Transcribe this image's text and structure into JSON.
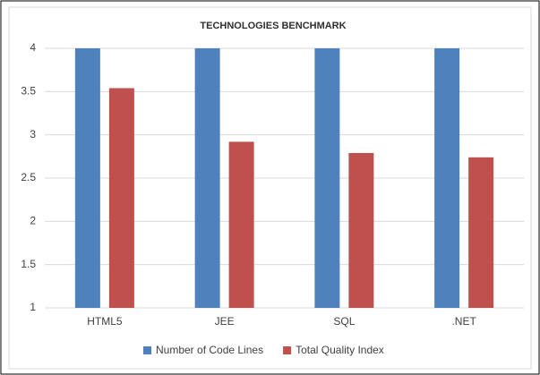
{
  "chart_data": {
    "type": "bar",
    "title": "TECHNOLOGIES BENCHMARK",
    "categories": [
      "HTML5",
      "JEE",
      "SQL",
      ".NET"
    ],
    "series": [
      {
        "name": "Number of Code Lines",
        "color": "#4f81bd",
        "values": [
          4,
          4,
          4,
          4
        ]
      },
      {
        "name": "Total Quality Index",
        "color": "#c0504d",
        "values": [
          3.54,
          2.92,
          2.79,
          2.74
        ]
      }
    ],
    "ylim": [
      1,
      4
    ],
    "yticks": [
      1,
      1.5,
      2,
      2.5,
      3,
      3.5,
      4
    ],
    "grid": true,
    "legend": "bottom"
  }
}
